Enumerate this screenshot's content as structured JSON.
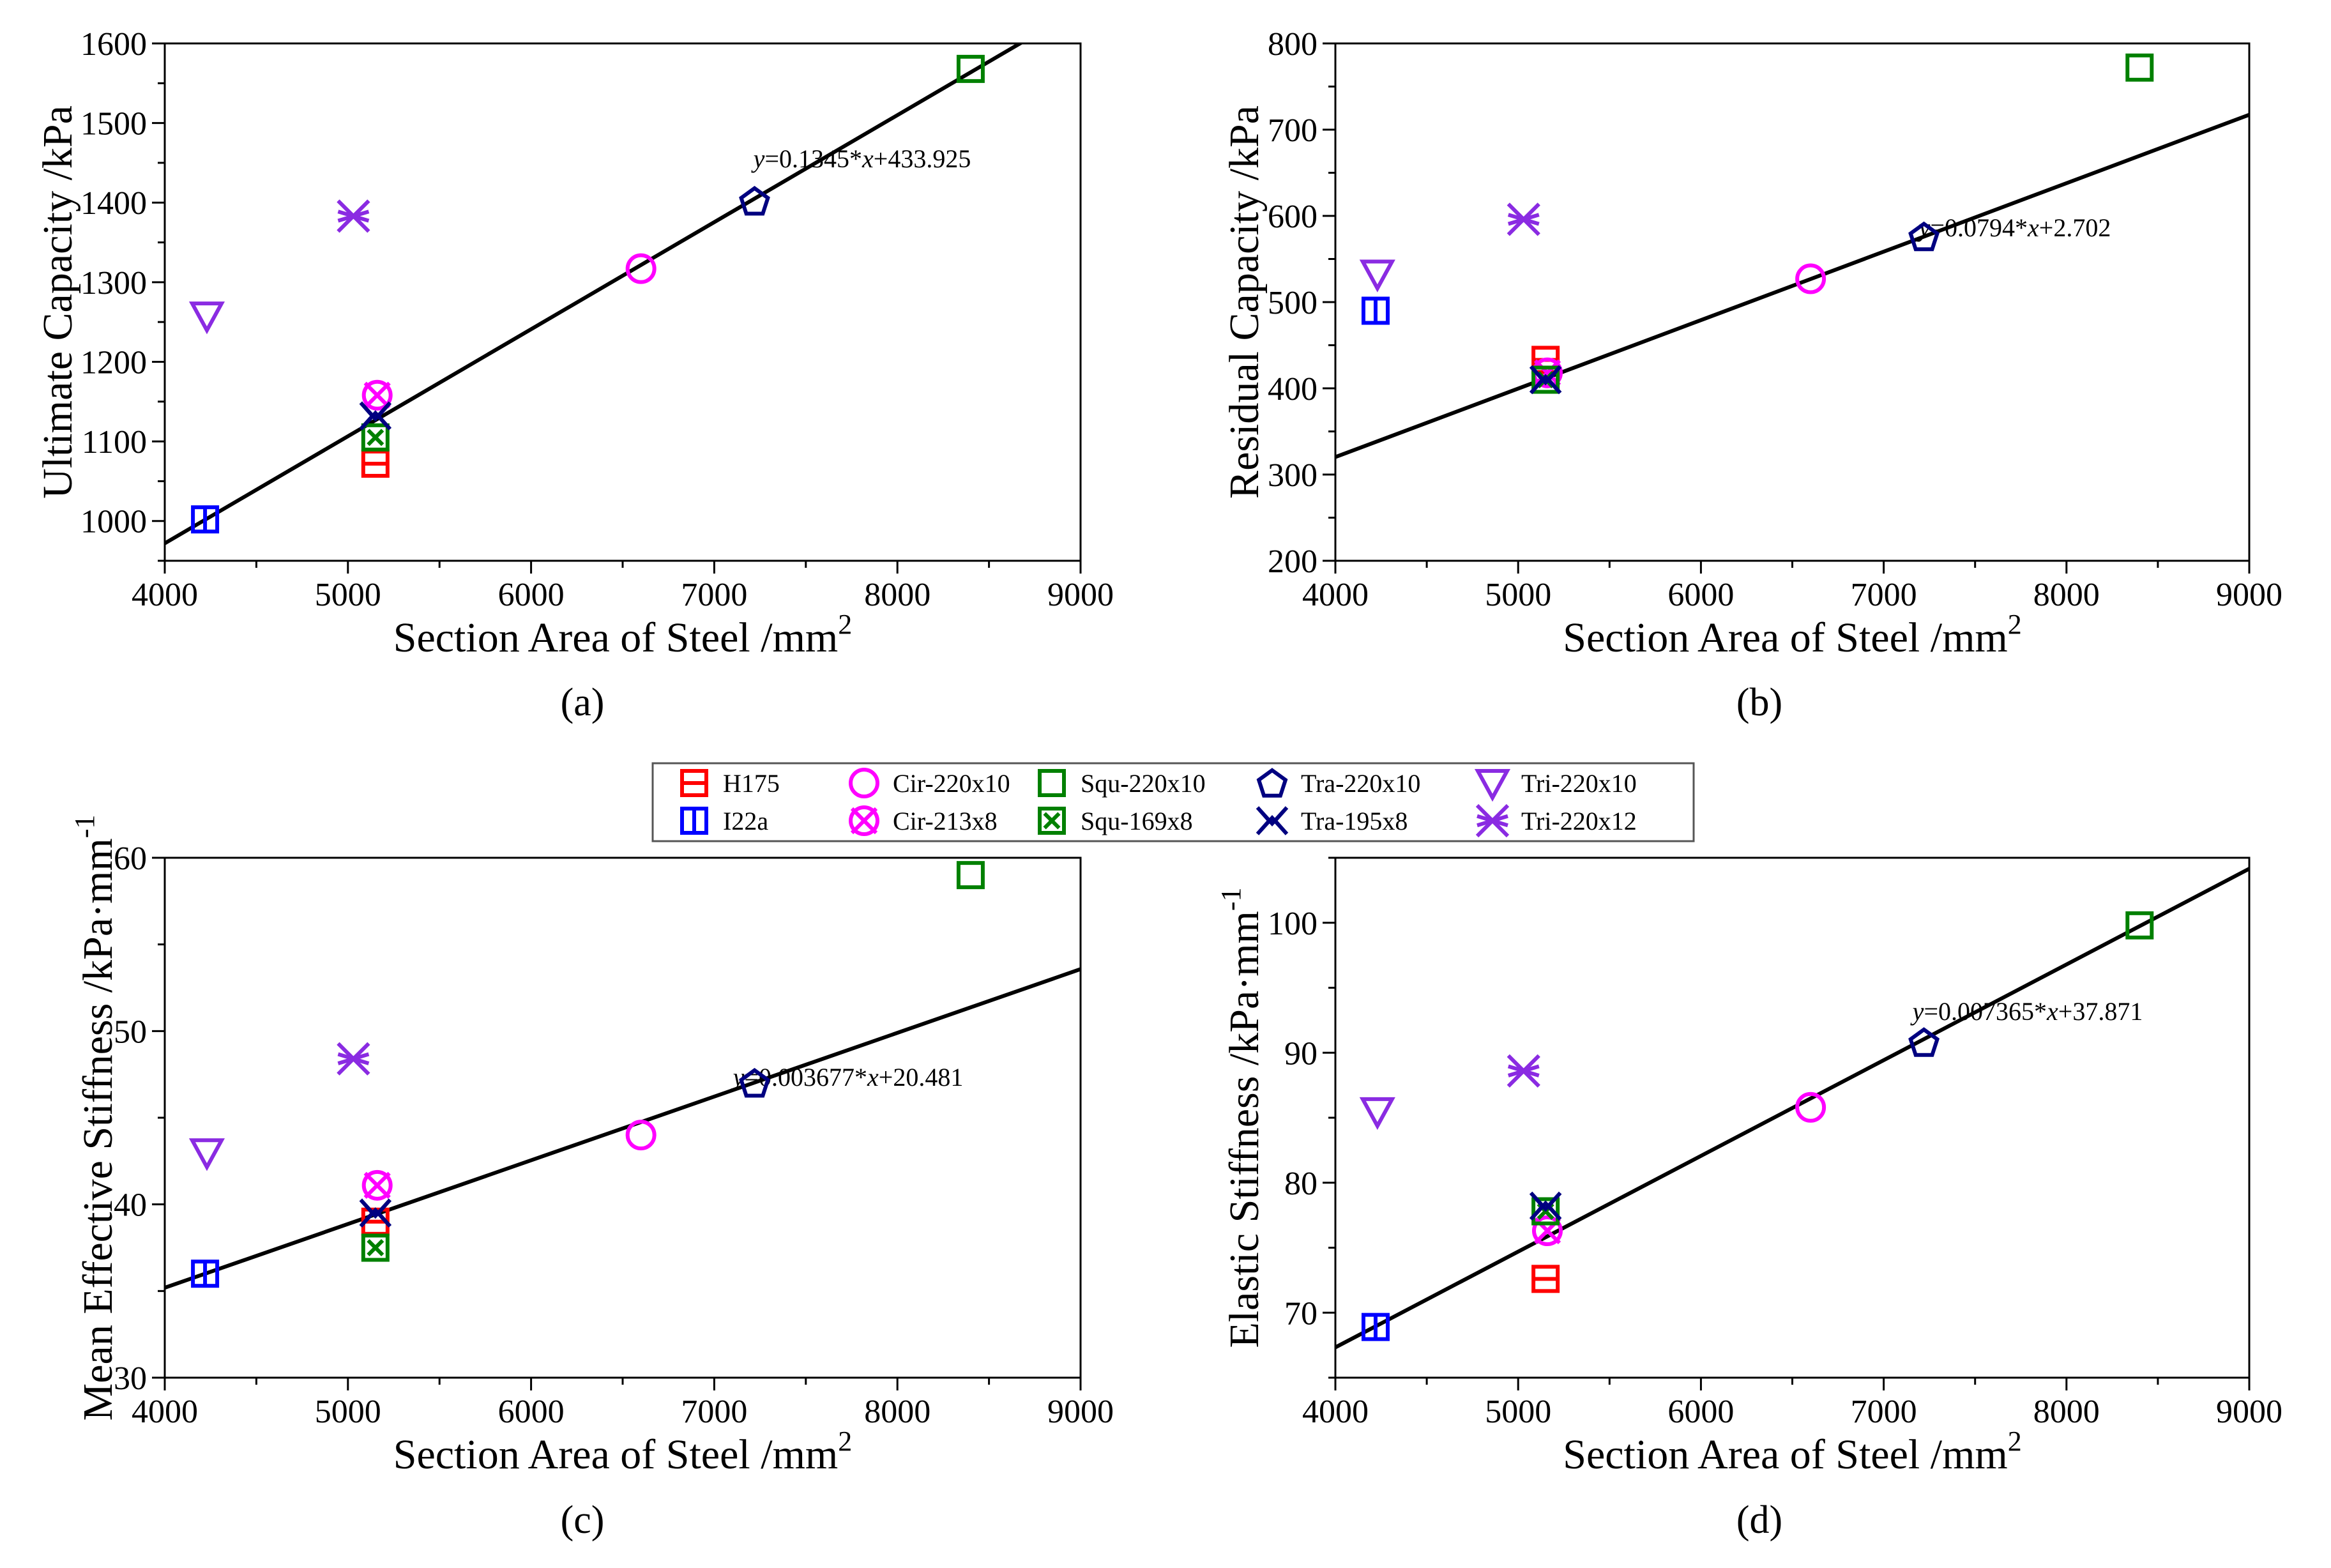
{
  "legend": [
    {
      "label": "H175",
      "shape": "sq-h",
      "color": "#ff0000"
    },
    {
      "label": "I22a",
      "shape": "sq-v",
      "color": "#0000ff"
    },
    {
      "label": "Cir-220x10",
      "shape": "circle",
      "color": "#ff00ff"
    },
    {
      "label": "Cir-213x8",
      "shape": "circle-x",
      "color": "#ff00ff"
    },
    {
      "label": "Squ-220x10",
      "shape": "square",
      "color": "#008000"
    },
    {
      "label": "Squ-169x8",
      "shape": "square-dot",
      "color": "#008000"
    },
    {
      "label": "Tra-220x10",
      "shape": "pentagon",
      "color": "#000080"
    },
    {
      "label": "Tra-195x8",
      "shape": "star-x",
      "color": "#000080"
    },
    {
      "label": "Tri-220x10",
      "shape": "tri-down",
      "color": "#8a2be2"
    },
    {
      "label": "Tri-220x12",
      "shape": "asterisk",
      "color": "#8a2be2"
    }
  ],
  "chart_data": [
    {
      "type": "scatter",
      "panel_label": "(a)",
      "xlabel": "Section Area of Steel /mm",
      "xlabel_sup": "2",
      "ylabel": "Ultimate Capacity /kPa",
      "ylabel_sup": "",
      "xlim": [
        4000,
        9000
      ],
      "ylim": [
        950,
        1600
      ],
      "xticks": [
        4000,
        5000,
        6000,
        7000,
        8000,
        9000
      ],
      "yticks": [
        1000,
        1100,
        1200,
        1300,
        1400,
        1500,
        1600
      ],
      "equation": {
        "y": "y",
        "mid": "=0.1345*",
        "x": "x",
        "rest": "+433.925"
      },
      "fit": {
        "slope": 0.1345,
        "intercept": 433.925
      },
      "points": [
        {
          "series": "H175",
          "x": 5150,
          "y": 1072
        },
        {
          "series": "I22a",
          "x": 4220,
          "y": 1002
        },
        {
          "series": "Cir-220x10",
          "x": 6600,
          "y": 1317
        },
        {
          "series": "Cir-213x8",
          "x": 5160,
          "y": 1158
        },
        {
          "series": "Squ-220x10",
          "x": 8400,
          "y": 1568
        },
        {
          "series": "Squ-169x8",
          "x": 5150,
          "y": 1105
        },
        {
          "series": "Tra-220x10",
          "x": 7220,
          "y": 1402
        },
        {
          "series": "Tra-195x8",
          "x": 5150,
          "y": 1132
        },
        {
          "series": "Tri-220x10",
          "x": 4230,
          "y": 1258
        },
        {
          "series": "Tri-220x12",
          "x": 5030,
          "y": 1383
        }
      ]
    },
    {
      "type": "scatter",
      "panel_label": "(b)",
      "xlabel": "Section Area of Steel /mm",
      "xlabel_sup": "2",
      "ylabel": "Residual Capacity /kPa",
      "ylabel_sup": "",
      "xlim": [
        4000,
        9000
      ],
      "ylim": [
        200,
        800
      ],
      "xticks": [
        4000,
        5000,
        6000,
        7000,
        8000,
        9000
      ],
      "yticks": [
        200,
        300,
        400,
        500,
        600,
        700,
        800
      ],
      "equation": {
        "y": "y",
        "mid": "=0.0794*",
        "x": "x",
        "rest": "+2.702"
      },
      "fit": {
        "slope": 0.0794,
        "intercept": 2.702
      },
      "points": [
        {
          "series": "H175",
          "x": 5150,
          "y": 433
        },
        {
          "series": "I22a",
          "x": 4220,
          "y": 490
        },
        {
          "series": "Cir-220x10",
          "x": 6600,
          "y": 527
        },
        {
          "series": "Cir-213x8",
          "x": 5160,
          "y": 418
        },
        {
          "series": "Squ-220x10",
          "x": 8400,
          "y": 772
        },
        {
          "series": "Squ-169x8",
          "x": 5150,
          "y": 410
        },
        {
          "series": "Tra-220x10",
          "x": 7220,
          "y": 576
        },
        {
          "series": "Tra-195x8",
          "x": 5150,
          "y": 410
        },
        {
          "series": "Tri-220x10",
          "x": 4230,
          "y": 533
        },
        {
          "series": "Tri-220x12",
          "x": 5030,
          "y": 596
        }
      ]
    },
    {
      "type": "scatter",
      "panel_label": "(c)",
      "xlabel": "Section Area of Steel /mm",
      "xlabel_sup": "2",
      "ylabel": "Mean Effective Stiffness /kPa·mm",
      "ylabel_sup": "-1",
      "xlim": [
        4000,
        9000
      ],
      "ylim": [
        30,
        60
      ],
      "xticks": [
        4000,
        5000,
        6000,
        7000,
        8000,
        9000
      ],
      "yticks": [
        30,
        40,
        50,
        60
      ],
      "equation": {
        "y": "y",
        "mid": "=0.003677*",
        "x": "x",
        "rest": "+20.481"
      },
      "fit": {
        "slope": 0.003677,
        "intercept": 20.481
      },
      "points": [
        {
          "series": "H175",
          "x": 5150,
          "y": 39.0
        },
        {
          "series": "I22a",
          "x": 4220,
          "y": 36.0
        },
        {
          "series": "Cir-220x10",
          "x": 6600,
          "y": 44.0
        },
        {
          "series": "Cir-213x8",
          "x": 5160,
          "y": 41.1
        },
        {
          "series": "Squ-220x10",
          "x": 8400,
          "y": 59.0
        },
        {
          "series": "Squ-169x8",
          "x": 5150,
          "y": 37.5
        },
        {
          "series": "Tra-220x10",
          "x": 7220,
          "y": 47.0
        },
        {
          "series": "Tra-195x8",
          "x": 5150,
          "y": 39.5
        },
        {
          "series": "Tri-220x10",
          "x": 4230,
          "y": 43.0
        },
        {
          "series": "Tri-220x12",
          "x": 5030,
          "y": 48.4
        }
      ]
    },
    {
      "type": "scatter",
      "panel_label": "(d)",
      "xlabel": "Section Area of Steel /mm",
      "xlabel_sup": "2",
      "ylabel": "Elastic Stiffness /kPa·mm",
      "ylabel_sup": "-1",
      "xlim": [
        4000,
        9000
      ],
      "ylim": [
        65,
        105
      ],
      "xticks": [
        4000,
        5000,
        6000,
        7000,
        8000,
        9000
      ],
      "yticks": [
        70,
        80,
        90,
        100
      ],
      "equation": {
        "y": "y",
        "mid": "=0.007365*",
        "x": "x",
        "rest": "+37.871"
      },
      "fit": {
        "slope": 0.007365,
        "intercept": 37.871
      },
      "points": [
        {
          "series": "H175",
          "x": 5150,
          "y": 72.6
        },
        {
          "series": "I22a",
          "x": 4220,
          "y": 68.9
        },
        {
          "series": "Cir-220x10",
          "x": 6600,
          "y": 85.8
        },
        {
          "series": "Cir-213x8",
          "x": 5160,
          "y": 76.3
        },
        {
          "series": "Squ-220x10",
          "x": 8400,
          "y": 99.8
        },
        {
          "series": "Squ-169x8",
          "x": 5150,
          "y": 77.8
        },
        {
          "series": "Tra-220x10",
          "x": 7220,
          "y": 90.8
        },
        {
          "series": "Tra-195x8",
          "x": 5150,
          "y": 78.2
        },
        {
          "series": "Tri-220x10",
          "x": 4230,
          "y": 85.5
        },
        {
          "series": "Tri-220x12",
          "x": 5030,
          "y": 88.6
        }
      ]
    }
  ]
}
